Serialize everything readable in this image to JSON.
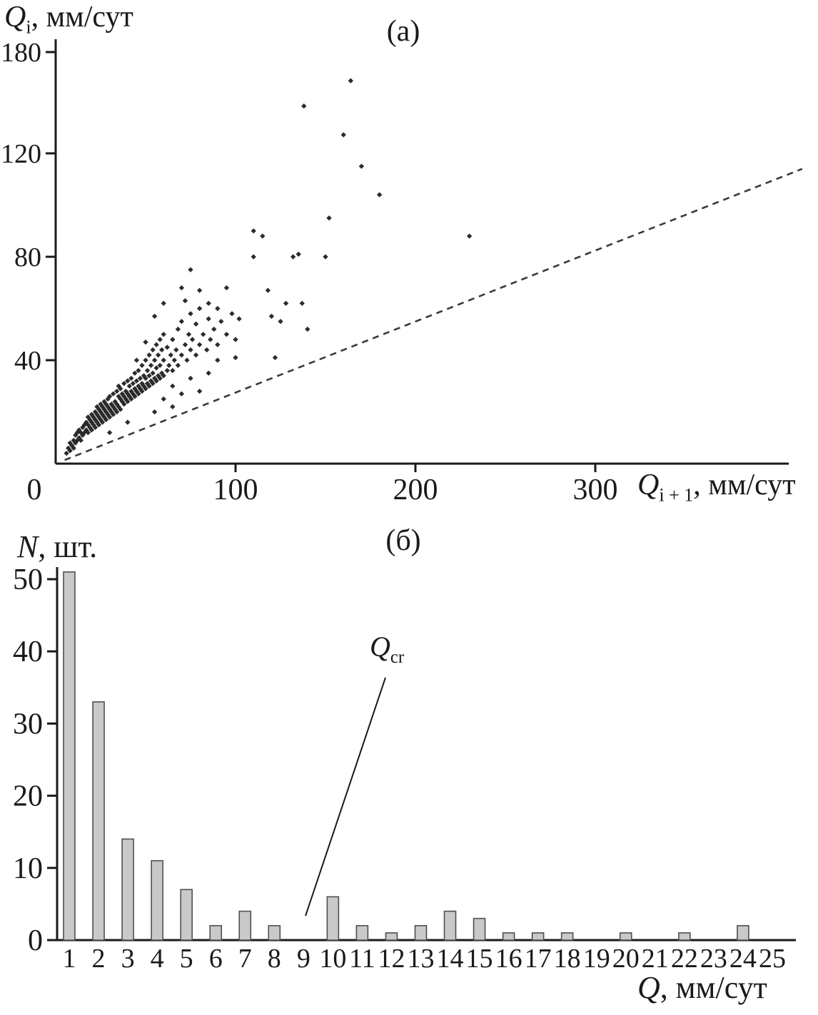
{
  "style": {
    "ink": "#1a1a1a",
    "point_color": "#2b2b2b",
    "bar_fill": "#c9c9c9",
    "bar_border": "#4f4f4f",
    "background": "#ffffff"
  },
  "labels": {
    "panel_a": "(а)",
    "panel_b": "(б)",
    "ya_q": "Q",
    "ya_sub": "i",
    "ya_rest": ", мм/сут",
    "xa_q": "Q",
    "xa_sub": "i + 1",
    "xa_rest": ", мм/сут",
    "yb_n": "N",
    "yb_rest": ", шт.",
    "xb_q": "Q",
    "xb_rest": ", мм/сут",
    "qcr_q": "Q",
    "qcr_sub": "cr"
  },
  "chart_data": [
    {
      "type": "scatter",
      "title": "(а)",
      "xlabel": "Q i+1, мм/сут",
      "ylabel": "Q i, мм/сут",
      "xlim": [
        0,
        410
      ],
      "ylim": [
        0,
        180
      ],
      "x_ticks": [
        0,
        100,
        200,
        300
      ],
      "y_ticks": [
        40,
        80,
        120,
        180
      ],
      "grid": false,
      "series": [
        {
          "name": "daily-discharge-pairs",
          "marker": "diamond",
          "color": "#2b2b2b",
          "points": [
            [
              6,
              4
            ],
            [
              7,
              6
            ],
            [
              8,
              5
            ],
            [
              8,
              8
            ],
            [
              9,
              7
            ],
            [
              10,
              6
            ],
            [
              10,
              9
            ],
            [
              11,
              8
            ],
            [
              11,
              11
            ],
            [
              12,
              9
            ],
            [
              12,
              12
            ],
            [
              13,
              10
            ],
            [
              13,
              13
            ],
            [
              14,
              9
            ],
            [
              14,
              12
            ],
            [
              15,
              11
            ],
            [
              15,
              14
            ],
            [
              16,
              12
            ],
            [
              16,
              15
            ],
            [
              17,
              13
            ],
            [
              17,
              16
            ],
            [
              18,
              12
            ],
            [
              18,
              15
            ],
            [
              18,
              18
            ],
            [
              19,
              14
            ],
            [
              19,
              17
            ],
            [
              20,
              13
            ],
            [
              20,
              16
            ],
            [
              20,
              19
            ],
            [
              21,
              15
            ],
            [
              21,
              18
            ],
            [
              22,
              14
            ],
            [
              22,
              17
            ],
            [
              22,
              20
            ],
            [
              23,
              16
            ],
            [
              23,
              19
            ],
            [
              23,
              22
            ],
            [
              24,
              15
            ],
            [
              24,
              18
            ],
            [
              24,
              21
            ],
            [
              25,
              17
            ],
            [
              25,
              20
            ],
            [
              25,
              23
            ],
            [
              26,
              16
            ],
            [
              26,
              19
            ],
            [
              26,
              22
            ],
            [
              27,
              18
            ],
            [
              27,
              21
            ],
            [
              27,
              24
            ],
            [
              28,
              17
            ],
            [
              28,
              20
            ],
            [
              28,
              23
            ],
            [
              29,
              19
            ],
            [
              29,
              22
            ],
            [
              29,
              25
            ],
            [
              30,
              12
            ],
            [
              30,
              18
            ],
            [
              30,
              21
            ],
            [
              30,
              26
            ],
            [
              31,
              20
            ],
            [
              31,
              23
            ],
            [
              32,
              19
            ],
            [
              32,
              22
            ],
            [
              32,
              27
            ],
            [
              33,
              21
            ],
            [
              33,
              24
            ],
            [
              34,
              20
            ],
            [
              34,
              23
            ],
            [
              34,
              28
            ],
            [
              35,
              22
            ],
            [
              35,
              26
            ],
            [
              35,
              30
            ],
            [
              36,
              21
            ],
            [
              36,
              25
            ],
            [
              36,
              29
            ],
            [
              37,
              24
            ],
            [
              37,
              27
            ],
            [
              38,
              23
            ],
            [
              38,
              26
            ],
            [
              38,
              31
            ],
            [
              39,
              25
            ],
            [
              39,
              28
            ],
            [
              40,
              16
            ],
            [
              40,
              24
            ],
            [
              40,
              27
            ],
            [
              40,
              32
            ],
            [
              41,
              26
            ],
            [
              41,
              30
            ],
            [
              42,
              25
            ],
            [
              42,
              28
            ],
            [
              42,
              33
            ],
            [
              43,
              27
            ],
            [
              43,
              31
            ],
            [
              44,
              26
            ],
            [
              44,
              29
            ],
            [
              44,
              35
            ],
            [
              45,
              28
            ],
            [
              45,
              32
            ],
            [
              45,
              40
            ],
            [
              46,
              27
            ],
            [
              46,
              30
            ],
            [
              46,
              36
            ],
            [
              47,
              29
            ],
            [
              47,
              33
            ],
            [
              48,
              28
            ],
            [
              48,
              31
            ],
            [
              48,
              38
            ],
            [
              49,
              30
            ],
            [
              49,
              34
            ],
            [
              50,
              29
            ],
            [
              50,
              33
            ],
            [
              50,
              40
            ],
            [
              50,
              47
            ],
            [
              51,
              31
            ],
            [
              51,
              36
            ],
            [
              52,
              30
            ],
            [
              52,
              34
            ],
            [
              52,
              42
            ],
            [
              53,
              32
            ],
            [
              53,
              38
            ],
            [
              54,
              31
            ],
            [
              54,
              35
            ],
            [
              54,
              44
            ],
            [
              55,
              20
            ],
            [
              55,
              33
            ],
            [
              55,
              40
            ],
            [
              55,
              57
            ],
            [
              56,
              32
            ],
            [
              56,
              37
            ],
            [
              56,
              46
            ],
            [
              57,
              34
            ],
            [
              57,
              42
            ],
            [
              58,
              33
            ],
            [
              58,
              38
            ],
            [
              58,
              48
            ],
            [
              59,
              35
            ],
            [
              59,
              44
            ],
            [
              60,
              25
            ],
            [
              60,
              34
            ],
            [
              60,
              40
            ],
            [
              60,
              50
            ],
            [
              60,
              62
            ],
            [
              62,
              36
            ],
            [
              62,
              45
            ],
            [
              63,
              38
            ],
            [
              64,
              42
            ],
            [
              65,
              22
            ],
            [
              65,
              30
            ],
            [
              65,
              36
            ],
            [
              65,
              48
            ],
            [
              66,
              40
            ],
            [
              67,
              44
            ],
            [
              68,
              38
            ],
            [
              68,
              52
            ],
            [
              70,
              27
            ],
            [
              70,
              42
            ],
            [
              70,
              55
            ],
            [
              70,
              68
            ],
            [
              72,
              46
            ],
            [
              72,
              63
            ],
            [
              73,
              40
            ],
            [
              74,
              50
            ],
            [
              75,
              33
            ],
            [
              75,
              44
            ],
            [
              75,
              58
            ],
            [
              75,
              75
            ],
            [
              76,
              48
            ],
            [
              78,
              42
            ],
            [
              78,
              54
            ],
            [
              80,
              28
            ],
            [
              80,
              46
            ],
            [
              80,
              60
            ],
            [
              80,
              67
            ],
            [
              82,
              50
            ],
            [
              84,
              44
            ],
            [
              85,
              35
            ],
            [
              85,
              56
            ],
            [
              85,
              62
            ],
            [
              86,
              48
            ],
            [
              88,
              52
            ],
            [
              90,
              40
            ],
            [
              90,
              46
            ],
            [
              90,
              60
            ],
            [
              92,
              55
            ],
            [
              95,
              50
            ],
            [
              95,
              68
            ],
            [
              98,
              58
            ],
            [
              100,
              41
            ],
            [
              100,
              48
            ],
            [
              102,
              56
            ],
            [
              110,
              80
            ],
            [
              110,
              90
            ],
            [
              115,
              88
            ],
            [
              118,
              67
            ],
            [
              120,
              57
            ],
            [
              122,
              41
            ],
            [
              125,
              55
            ],
            [
              128,
              62
            ],
            [
              132,
              80
            ],
            [
              135,
              81
            ],
            [
              137,
              62
            ],
            [
              140,
              52
            ],
            [
              138,
              148
            ],
            [
              150,
              80
            ],
            [
              152,
              95
            ],
            [
              160,
              131
            ],
            [
              164,
              163
            ],
            [
              170,
              115
            ],
            [
              180,
              104
            ],
            [
              230,
              88
            ]
          ]
        },
        {
          "name": "lower-envelope-dashed-line",
          "style": "dashed",
          "color": "#3a3a3a",
          "points": [
            [
              5,
              1.4
            ],
            [
              415,
              114
            ]
          ]
        }
      ]
    },
    {
      "type": "bar",
      "title": "(б)",
      "xlabel": "Q, мм/сут",
      "ylabel": "N, шт.",
      "categories": [
        "1",
        "2",
        "3",
        "4",
        "5",
        "6",
        "7",
        "8",
        "9",
        "10",
        "11",
        "12",
        "13",
        "14",
        "15",
        "16",
        "17",
        "18",
        "19",
        "20",
        "21",
        "22",
        "23",
        "24",
        "25"
      ],
      "values": [
        51,
        33,
        14,
        11,
        7,
        2,
        4,
        2,
        0,
        6,
        2,
        1,
        2,
        4,
        3,
        1,
        1,
        1,
        0,
        1,
        0,
        1,
        0,
        2,
        0
      ],
      "ylim": [
        0,
        50
      ],
      "y_ticks": [
        0,
        10,
        20,
        30,
        40,
        50
      ],
      "grid": false,
      "bar_color": "#c9c9c9",
      "bar_border": "#4f4f4f",
      "annotation": {
        "text": "Qcr",
        "points_to_category": "9",
        "description": "critical discharge threshold marker with leader line"
      }
    }
  ]
}
